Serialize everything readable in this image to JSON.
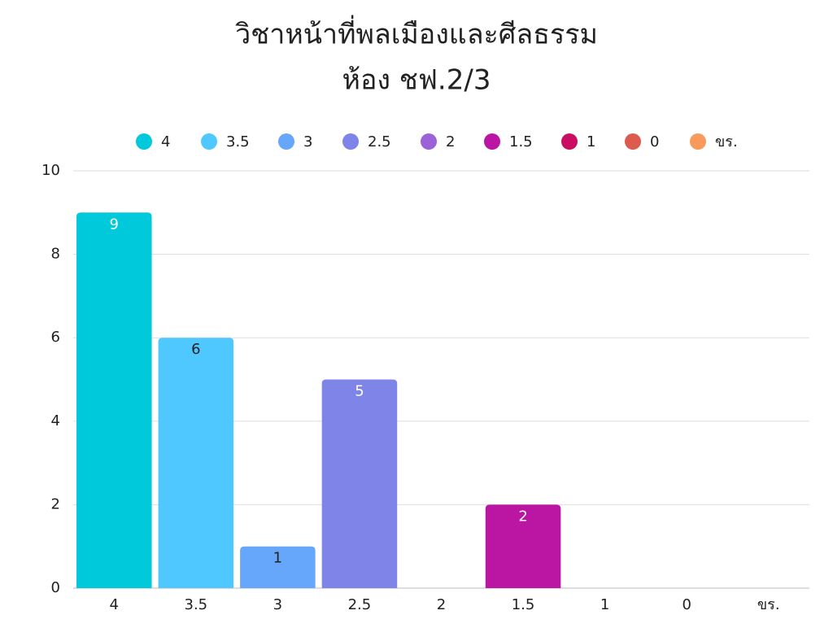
{
  "chart_data": {
    "type": "bar",
    "title": [
      "วิชาหน้าที่พลเมืองและศีลธรรม",
      "ห้อง ชฟ.2/3"
    ],
    "categories": [
      "4",
      "3.5",
      "3",
      "2.5",
      "2",
      "1.5",
      "1",
      "0",
      "ขร."
    ],
    "values": [
      9,
      6,
      1,
      5,
      0,
      2,
      0,
      0,
      0
    ],
    "colors": [
      "#00c9db",
      "#4fc8ff",
      "#66a7fb",
      "#7f84e8",
      "#9c62d8",
      "#bb15a3",
      "#c80d62",
      "#dc5a4e",
      "#f79a5b"
    ],
    "ylim": [
      0,
      10
    ],
    "yticks": [
      0,
      2,
      4,
      6,
      8,
      10
    ],
    "grid": true,
    "legend": "top"
  }
}
